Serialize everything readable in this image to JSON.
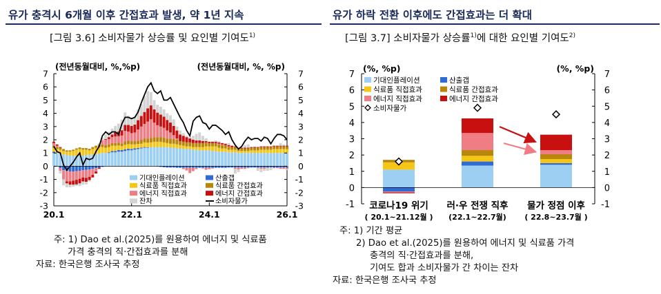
{
  "left": {
    "heading": "유가 충격시 6개월 이후 간접효과 발생, 약 1년 지속",
    "subtitle": "[그림 3.6] 소비자물가 상승률 및 요인별 기여도",
    "subtitle_sup": "1)",
    "notes": [
      "주: 1) Dao et al.(2025)를 원용하여 에너지 및 식료품",
      "가격 충격의 직·간접효과를 분해",
      "자료: 한국은행 조사국 추정"
    ]
  },
  "right": {
    "heading": "유가 하락 전환 이후에도 간접효과는 더 확대",
    "subtitle": "[그림 3.7] 소비자물가 상승률",
    "subtitle_sup1": "1)",
    "subtitle_mid": "에 대한 요인별 기여도",
    "subtitle_sup2": "2)",
    "notes": [
      "주: 1) 기간 평균",
      "2) Dao et al.(2025)를 원용하여 에너지 및 식료품 가격",
      "충격의 직·간접효과를 분해,",
      "기여도 합과 소비자물가 간 차이는 잔차",
      "자료: 한국은행 조사국 추정"
    ]
  },
  "chart_data": [
    {
      "type": "bar",
      "stacked": true,
      "left_unit": "(전년동월대비, %,%p)",
      "right_unit": "(전년동월대비, %, %p)",
      "ylim": [
        -3,
        7
      ],
      "yticks": [
        -3,
        -2,
        -1,
        0,
        1,
        2,
        3,
        4,
        5,
        6,
        7
      ],
      "xticks": [
        "20.1",
        "22.1",
        "24.1",
        "26.1"
      ],
      "legend": [
        {
          "name": "기대인플레이션",
          "color": "#9dcff2",
          "marker": "box"
        },
        {
          "name": "산출갭",
          "color": "#2e6bd6",
          "marker": "box"
        },
        {
          "name": "식료품 직접효과",
          "color": "#f5c518",
          "marker": "box"
        },
        {
          "name": "식료품 간접효과",
          "color": "#b8860b",
          "marker": "box"
        },
        {
          "name": "에너지 직접효과",
          "color": "#f07c84",
          "marker": "box"
        },
        {
          "name": "에너지 간접효과",
          "color": "#c81010",
          "marker": "box"
        },
        {
          "name": "잔차",
          "color": "#d3d3d3",
          "marker": "box"
        },
        {
          "name": "소비자물가",
          "color": "#000000",
          "marker": "line"
        }
      ],
      "months": [
        "20.1",
        "20.2",
        "20.3",
        "20.4",
        "20.5",
        "20.6",
        "20.7",
        "20.8",
        "20.9",
        "20.10",
        "20.11",
        "20.12",
        "21.1",
        "21.2",
        "21.3",
        "21.4",
        "21.5",
        "21.6",
        "21.7",
        "21.8",
        "21.9",
        "21.10",
        "21.11",
        "21.12",
        "22.1",
        "22.2",
        "22.3",
        "22.4",
        "22.5",
        "22.6",
        "22.7",
        "22.8",
        "22.9",
        "22.10",
        "22.11",
        "22.12",
        "23.1",
        "23.2",
        "23.3",
        "23.4",
        "23.5",
        "23.6",
        "23.7",
        "23.8",
        "23.9",
        "23.10",
        "23.11",
        "23.12",
        "24.1",
        "24.2",
        "24.3",
        "24.4",
        "24.5",
        "24.6",
        "24.7",
        "24.8",
        "24.9",
        "24.10",
        "24.11",
        "24.12",
        "25.1",
        "25.2",
        "25.3",
        "25.4",
        "25.5",
        "25.6",
        "25.7",
        "25.8",
        "25.9",
        "25.10",
        "25.11",
        "25.12",
        "26.1"
      ],
      "series": [
        {
          "name": "기대인플레이션",
          "values": [
            1.0,
            1.0,
            0.95,
            0.9,
            0.85,
            0.8,
            0.8,
            0.8,
            0.8,
            0.8,
            0.85,
            0.85,
            0.9,
            0.9,
            0.95,
            1.0,
            1.0,
            1.0,
            1.05,
            1.05,
            1.1,
            1.1,
            1.15,
            1.2,
            1.2,
            1.25,
            1.3,
            1.35,
            1.4,
            1.4,
            1.45,
            1.45,
            1.45,
            1.45,
            1.45,
            1.45,
            1.4,
            1.4,
            1.35,
            1.35,
            1.3,
            1.3,
            1.3,
            1.25,
            1.25,
            1.2,
            1.2,
            1.2,
            1.2,
            1.15,
            1.15,
            1.1,
            1.1,
            1.1,
            1.05,
            1.05,
            1.05,
            1.0,
            1.0,
            1.0,
            1.0,
            1.0,
            1.0,
            1.0,
            1.0,
            1.0,
            1.0,
            1.0,
            1.0,
            1.0,
            1.0,
            1.0,
            1.0
          ]
        },
        {
          "name": "산출갭",
          "values": [
            0.1,
            0.0,
            -0.15,
            -0.3,
            -0.35,
            -0.4,
            -0.4,
            -0.38,
            -0.35,
            -0.3,
            -0.28,
            -0.25,
            -0.2,
            -0.15,
            -0.1,
            -0.05,
            0.0,
            0.05,
            0.1,
            0.1,
            0.12,
            0.12,
            0.12,
            0.12,
            0.1,
            0.1,
            0.08,
            0.05,
            0.05,
            0.03,
            0.0,
            0.0,
            -0.02,
            -0.05,
            -0.08,
            -0.1,
            -0.1,
            -0.1,
            -0.12,
            -0.12,
            -0.12,
            -0.12,
            -0.12,
            -0.12,
            -0.12,
            -0.12,
            -0.12,
            -0.12,
            -0.12,
            -0.12,
            -0.12,
            -0.12,
            -0.12,
            -0.12,
            -0.1,
            -0.1,
            -0.1,
            -0.1,
            -0.1,
            -0.1,
            -0.1,
            -0.1,
            -0.1,
            -0.1,
            -0.1,
            -0.1,
            -0.1,
            -0.1,
            -0.1,
            -0.1,
            -0.1,
            -0.1,
            -0.1
          ]
        },
        {
          "name": "식료품 직접효과",
          "values": [
            0.3,
            0.3,
            0.3,
            0.25,
            0.25,
            0.3,
            0.35,
            0.45,
            0.5,
            0.45,
            0.4,
            0.35,
            0.4,
            0.5,
            0.5,
            0.45,
            0.4,
            0.4,
            0.4,
            0.4,
            0.35,
            0.3,
            0.35,
            0.35,
            0.35,
            0.3,
            0.3,
            0.3,
            0.35,
            0.35,
            0.35,
            0.4,
            0.4,
            0.4,
            0.35,
            0.3,
            0.3,
            0.3,
            0.3,
            0.25,
            0.25,
            0.2,
            0.2,
            0.2,
            0.2,
            0.25,
            0.25,
            0.3,
            0.3,
            0.35,
            0.35,
            0.3,
            0.25,
            0.25,
            0.2,
            0.2,
            0.2,
            0.15,
            0.15,
            0.15,
            0.15,
            0.2,
            0.2,
            0.2,
            0.25,
            0.25,
            0.25,
            0.25,
            0.3,
            0.3,
            0.3,
            0.3,
            0.3
          ]
        },
        {
          "name": "식료품 간접효과",
          "values": [
            0.15,
            0.15,
            0.15,
            0.15,
            0.1,
            0.1,
            0.1,
            0.1,
            0.12,
            0.12,
            0.12,
            0.12,
            0.15,
            0.15,
            0.18,
            0.2,
            0.2,
            0.2,
            0.2,
            0.2,
            0.2,
            0.2,
            0.25,
            0.25,
            0.25,
            0.25,
            0.25,
            0.3,
            0.3,
            0.3,
            0.35,
            0.35,
            0.35,
            0.35,
            0.35,
            0.35,
            0.35,
            0.35,
            0.35,
            0.3,
            0.3,
            0.3,
            0.3,
            0.3,
            0.3,
            0.3,
            0.3,
            0.3,
            0.25,
            0.25,
            0.25,
            0.25,
            0.25,
            0.25,
            0.2,
            0.2,
            0.2,
            0.2,
            0.2,
            0.2,
            0.2,
            0.2,
            0.2,
            0.2,
            0.2,
            0.2,
            0.2,
            0.2,
            0.2,
            0.2,
            0.2,
            0.2,
            0.2
          ]
        },
        {
          "name": "에너지 직접효과",
          "values": [
            0.2,
            0.1,
            -0.2,
            -0.7,
            -0.8,
            -0.75,
            -0.7,
            -0.65,
            -0.6,
            -0.55,
            -0.6,
            -0.55,
            -0.45,
            -0.25,
            0.0,
            0.3,
            0.4,
            0.4,
            0.45,
            0.5,
            0.5,
            0.6,
            0.8,
            0.7,
            0.6,
            0.65,
            0.85,
            1.0,
            1.1,
            1.3,
            1.4,
            1.1,
            0.9,
            0.8,
            0.75,
            0.6,
            0.5,
            0.3,
            0.1,
            0.0,
            -0.1,
            -0.2,
            -0.4,
            -0.25,
            -0.1,
            0.0,
            -0.05,
            -0.15,
            -0.1,
            -0.05,
            0.0,
            0.05,
            0.05,
            0.0,
            0.05,
            0.0,
            -0.1,
            -0.15,
            -0.1,
            -0.1,
            -0.05,
            0.0,
            0.0,
            -0.05,
            -0.1,
            -0.1,
            -0.05,
            0.0,
            -0.05,
            -0.05,
            -0.1,
            -0.1,
            -0.1
          ]
        },
        {
          "name": "에너지 간접효과",
          "values": [
            0.1,
            0.1,
            0.05,
            0.0,
            -0.15,
            -0.25,
            -0.3,
            -0.35,
            -0.35,
            -0.3,
            -0.3,
            -0.25,
            -0.2,
            -0.15,
            -0.1,
            0.0,
            0.05,
            0.15,
            0.2,
            0.3,
            0.35,
            0.4,
            0.45,
            0.5,
            0.55,
            0.6,
            0.7,
            0.8,
            0.9,
            1.0,
            1.05,
            1.0,
            0.95,
            0.9,
            0.85,
            0.8,
            0.75,
            0.7,
            0.6,
            0.5,
            0.45,
            0.4,
            0.3,
            0.25,
            0.2,
            0.2,
            0.15,
            0.1,
            0.1,
            0.1,
            0.1,
            0.1,
            0.1,
            0.1,
            0.1,
            0.1,
            0.05,
            0.05,
            0.05,
            0.05,
            0.05,
            0.05,
            0.05,
            0.05,
            0.05,
            0.05,
            0.05,
            0.05,
            0.05,
            0.05,
            0.05,
            0.05,
            0.05
          ]
        },
        {
          "name": "잔차",
          "values": [
            0.0,
            0.0,
            -0.2,
            -0.45,
            -0.3,
            -0.2,
            -0.15,
            -0.1,
            -0.2,
            -0.25,
            -0.2,
            -0.1,
            0.0,
            0.0,
            0.1,
            0.2,
            0.35,
            0.4,
            0.45,
            0.5,
            0.6,
            0.8,
            0.95,
            0.7,
            0.6,
            0.6,
            0.8,
            0.9,
            1.2,
            1.3,
            1.0,
            0.7,
            0.6,
            0.6,
            0.55,
            0.5,
            0.55,
            0.5,
            0.3,
            0.3,
            0.2,
            0.1,
            0.1,
            0.3,
            0.5,
            0.6,
            0.4,
            0.2,
            0.0,
            0.05,
            0.1,
            0.1,
            0.0,
            0.0,
            0.15,
            0.0,
            -0.35,
            -0.2,
            0.0,
            0.2,
            0.25,
            0.0,
            0.05,
            -0.2,
            -0.25,
            -0.15,
            -0.2,
            -0.2,
            0.0,
            0.0,
            0.2,
            0.1,
            -0.1
          ]
        }
      ],
      "cpi": [
        1.5,
        1.1,
        1.0,
        0.1,
        -0.3,
        0.0,
        0.3,
        0.7,
        1.0,
        0.1,
        0.6,
        0.5,
        0.6,
        1.1,
        1.5,
        2.3,
        2.6,
        2.4,
        2.6,
        2.6,
        2.4,
        3.2,
        3.7,
        3.7,
        3.6,
        3.7,
        4.1,
        4.8,
        5.4,
        6.0,
        6.3,
        5.7,
        5.5,
        5.7,
        5.0,
        5.0,
        5.2,
        4.7,
        4.2,
        3.7,
        3.3,
        2.7,
        2.3,
        3.4,
        3.7,
        3.8,
        3.3,
        3.2,
        2.8,
        3.1,
        3.1,
        2.9,
        2.7,
        2.4,
        2.6,
        2.0,
        1.6,
        1.3,
        1.5,
        1.9,
        2.2,
        2.0,
        2.1,
        2.1,
        1.9,
        2.2,
        2.1,
        1.7,
        2.1,
        2.4,
        2.4,
        2.3,
        2.0
      ]
    },
    {
      "type": "bar",
      "stacked": true,
      "left_unit": "(%, %p)",
      "right_unit": "(%, %p)",
      "ylim": [
        -1,
        7
      ],
      "yticks": [
        -1,
        0,
        1,
        2,
        3,
        4,
        5,
        6,
        7
      ],
      "categories": [
        "코로나19 위기",
        "러·우 전쟁 직후",
        "물가 정점 이후"
      ],
      "category_periods": [
        "( 20.1~21.12월 )",
        "(22.1~22.7월)",
        "( 22.8~23.7월 )"
      ],
      "legend": [
        {
          "name": "기대인플레이션",
          "color": "#9dcff2",
          "marker": "box"
        },
        {
          "name": "산출갭",
          "color": "#2e6bd6",
          "marker": "box"
        },
        {
          "name": "식료품 직접효과",
          "color": "#f5c518",
          "marker": "box"
        },
        {
          "name": "식료품 간접효과",
          "color": "#b8860b",
          "marker": "box"
        },
        {
          "name": "에너지 직접효과",
          "color": "#f07c84",
          "marker": "box"
        },
        {
          "name": "에너지 간접효과",
          "color": "#c81010",
          "marker": "box"
        },
        {
          "name": "소비자물가",
          "color": "#000000",
          "marker": "diamond"
        }
      ],
      "series": [
        {
          "name": "기대인플레이션",
          "values": [
            1.1,
            1.35,
            1.4
          ]
        },
        {
          "name": "산출갭",
          "values": [
            -0.25,
            0.25,
            0.1
          ]
        },
        {
          "name": "식료품 직접효과",
          "values": [
            0.45,
            0.35,
            0.25
          ]
        },
        {
          "name": "식료품 간접효과",
          "values": [
            0.15,
            0.35,
            0.3
          ]
        },
        {
          "name": "에너지 직접효과",
          "values": [
            -0.05,
            1.05,
            0.25
          ]
        },
        {
          "name": "에너지 간접효과",
          "values": [
            -0.05,
            0.9,
            0.95
          ]
        }
      ],
      "cpi": [
        1.6,
        4.9,
        4.5
      ],
      "arrows": [
        {
          "color": "#c81010",
          "from_category": 1,
          "to_category": 2
        },
        {
          "color": "#f07c84",
          "from_category": 1,
          "to_category": 2
        }
      ]
    }
  ]
}
